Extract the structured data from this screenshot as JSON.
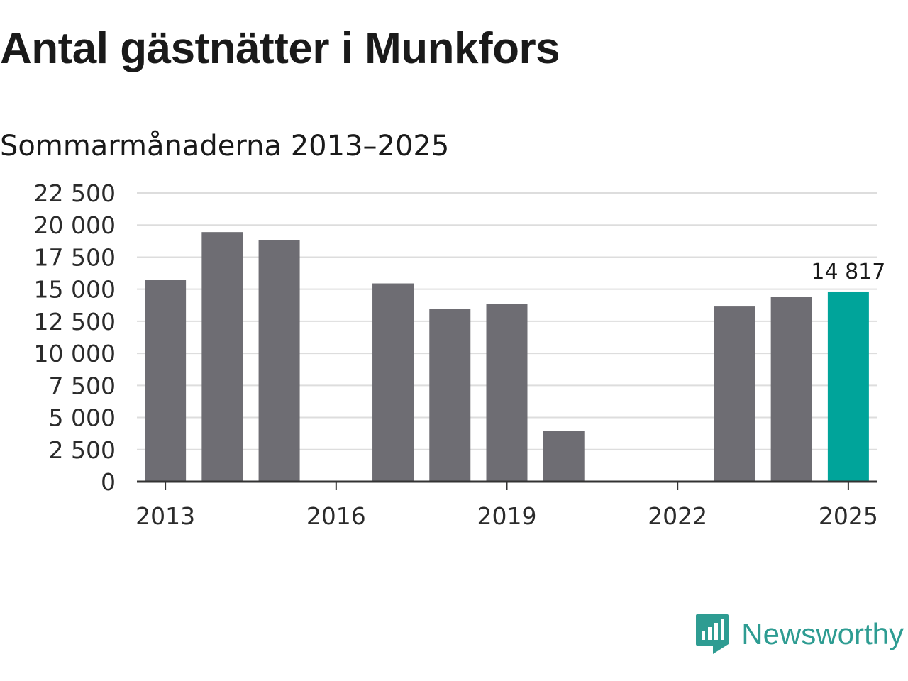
{
  "title": "Antal gästnätter i Munkfors",
  "subtitle": "Sommarmånaderna 2013–2025",
  "logo": {
    "text": "Newsworthy",
    "icon": "newsworthy-logo-icon",
    "color": "#2e9c92"
  },
  "colors": {
    "bar": "#6e6d73",
    "highlight": "#00a49a",
    "grid": "#dddddd",
    "axis": "#333333"
  },
  "chart_data": {
    "type": "bar",
    "title": "Antal gästnätter i Munkfors",
    "subtitle": "Sommarmånaderna 2013–2025",
    "categories": [
      "2013",
      "2014",
      "2015",
      "2016",
      "2017",
      "2018",
      "2019",
      "2020",
      "2021",
      "2022",
      "2023",
      "2024",
      "2025"
    ],
    "values": [
      15700,
      19450,
      18850,
      null,
      15450,
      13450,
      13850,
      3950,
      null,
      null,
      13650,
      14400,
      14817
    ],
    "highlight": "2025",
    "data_labels": [
      {
        "category": "2025",
        "text": "14 817"
      }
    ],
    "ylim": [
      0,
      22500
    ],
    "yticks": [
      {
        "value": 0,
        "label": "0"
      },
      {
        "value": 2500,
        "label": "2 500"
      },
      {
        "value": 5000,
        "label": "5 000"
      },
      {
        "value": 7500,
        "label": "7 500"
      },
      {
        "value": 10000,
        "label": "10 000"
      },
      {
        "value": 12500,
        "label": "12 500"
      },
      {
        "value": 15000,
        "label": "15 000"
      },
      {
        "value": 17500,
        "label": "17 500"
      },
      {
        "value": 20000,
        "label": "20 000"
      },
      {
        "value": 22500,
        "label": "22 500"
      }
    ],
    "xticks": [
      "2013",
      "2016",
      "2019",
      "2022",
      "2025"
    ],
    "grid": true,
    "xlabel": "",
    "ylabel": ""
  }
}
